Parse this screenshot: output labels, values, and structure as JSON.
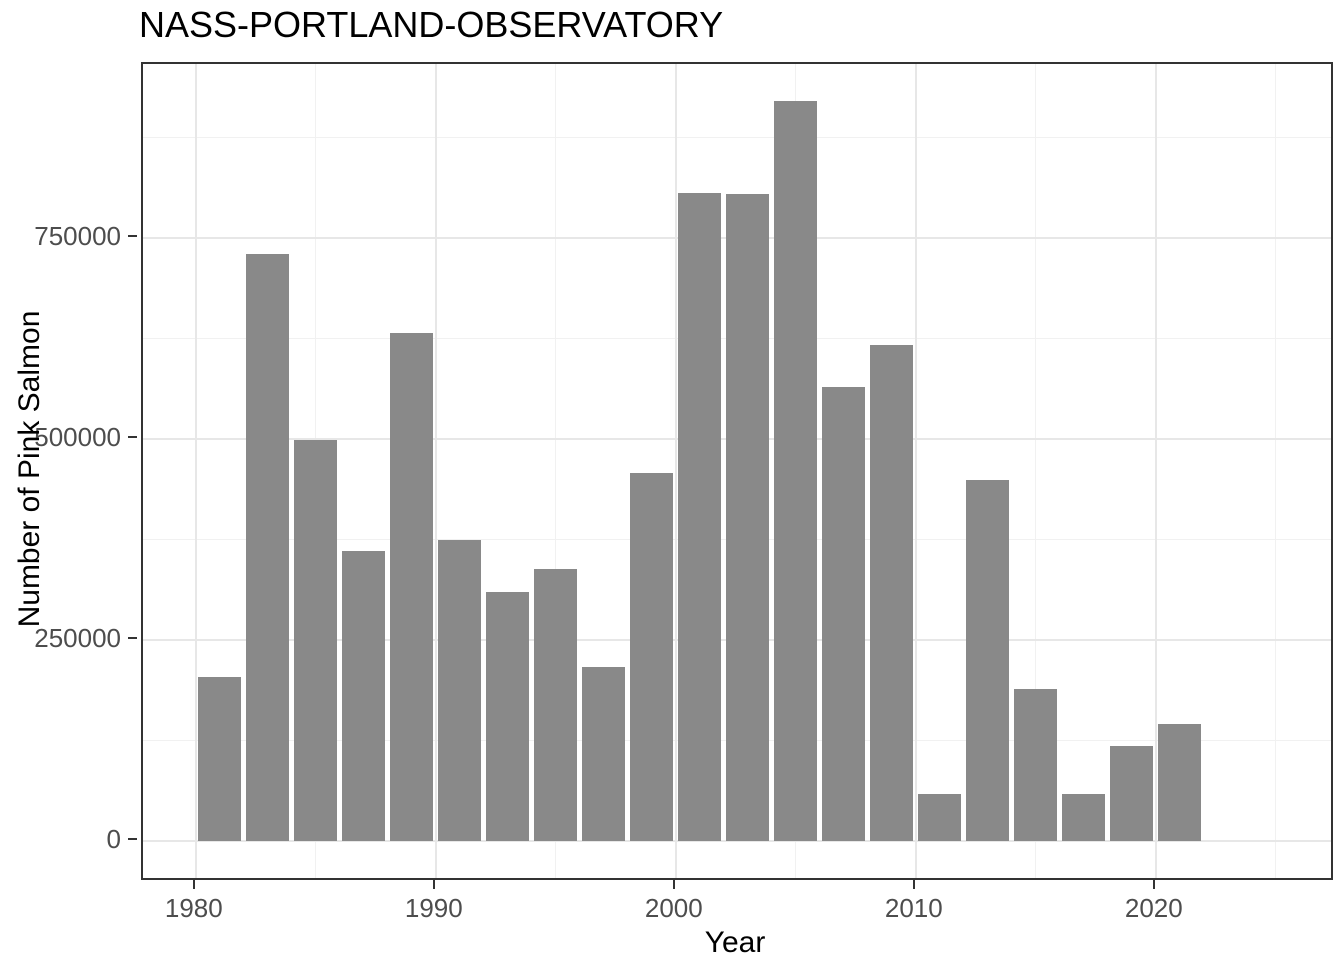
{
  "chart_data": {
    "type": "bar",
    "title": "NASS-PORTLAND-OBSERVATORY",
    "xlabel": "Year",
    "ylabel": "Number of Pink Salmon",
    "categories": [
      1981,
      1983,
      1985,
      1987,
      1989,
      1991,
      1993,
      1995,
      1997,
      1999,
      2001,
      2003,
      2005,
      2007,
      2009,
      2011,
      2013,
      2015,
      2017,
      2019,
      2021
    ],
    "values": [
      204000,
      730000,
      499000,
      361000,
      631000,
      374000,
      310000,
      338000,
      216000,
      458000,
      806000,
      805000,
      920000,
      565000,
      617000,
      58000,
      449000,
      189000,
      59000,
      118000,
      145000
    ],
    "bar_width_years": 1.8,
    "x_ticks": [
      1980,
      1990,
      2000,
      2010,
      2020
    ],
    "x_tick_labels": [
      "1980",
      "1990",
      "2000",
      "2010",
      "2020"
    ],
    "x_minor_ticks": [
      1985,
      1995,
      2005,
      2015,
      2025
    ],
    "y_ticks": [
      0,
      250000,
      500000,
      750000
    ],
    "y_tick_labels": [
      "0",
      "250000",
      "500000",
      "750000"
    ],
    "y_minor_ticks": [
      125000,
      375000,
      625000,
      875000
    ],
    "x_range": [
      1977.8,
      2027.3
    ],
    "y_range": [
      -46000,
      966000
    ],
    "grid": true,
    "legend": "none",
    "colors": {
      "bar": "#898989",
      "grid_major": "#e7e7e7",
      "grid_minor": "#f1f1f1",
      "panel_border": "#333333",
      "tick_mark": "#333333",
      "tick_label": "#4d4d4d",
      "title": "#000000",
      "axis_title": "#000000",
      "background": "#ffffff"
    }
  }
}
